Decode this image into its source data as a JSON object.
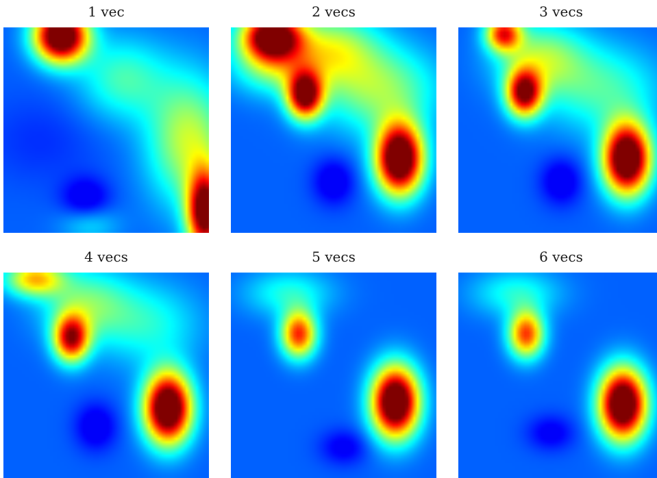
{
  "chart_data": [
    {
      "type": "heatmap",
      "title": "1 vec",
      "colormap": "jet",
      "value_range": [
        0,
        1
      ],
      "peaks": [
        {
          "x": 0.28,
          "y": 0.04,
          "value": 0.99,
          "sx": 0.09,
          "sy": 0.09
        },
        {
          "x": 0.98,
          "y": 0.9,
          "value": 0.85,
          "sx": 0.06,
          "sy": 0.14
        },
        {
          "x": 0.9,
          "y": 0.55,
          "value": 0.35,
          "sx": 0.14,
          "sy": 0.22
        },
        {
          "x": 0.58,
          "y": 0.25,
          "value": 0.22,
          "sx": 0.15,
          "sy": 0.14
        },
        {
          "x": 0.42,
          "y": 0.96,
          "value": 0.12,
          "sx": 0.1,
          "sy": 0.06
        }
      ],
      "troughs": [
        {
          "x": 0.4,
          "y": 0.83,
          "value": -0.15,
          "sx": 0.08,
          "sy": 0.07
        },
        {
          "x": 0.18,
          "y": 0.55,
          "value": -0.05,
          "sx": 0.2,
          "sy": 0.15
        }
      ]
    },
    {
      "type": "heatmap",
      "title": "2 vecs",
      "colormap": "jet",
      "value_range": [
        0,
        1
      ],
      "peaks": [
        {
          "x": 0.2,
          "y": 0.04,
          "value": 0.88,
          "sx": 0.1,
          "sy": 0.08
        },
        {
          "x": 0.36,
          "y": 0.33,
          "value": 0.8,
          "sx": 0.06,
          "sy": 0.08
        },
        {
          "x": 0.82,
          "y": 0.64,
          "value": 1.0,
          "sx": 0.08,
          "sy": 0.12
        },
        {
          "x": 0.22,
          "y": 0.18,
          "value": 0.3,
          "sx": 0.15,
          "sy": 0.1
        },
        {
          "x": 0.5,
          "y": 0.1,
          "value": 0.3,
          "sx": 0.15,
          "sy": 0.12
        },
        {
          "x": 0.72,
          "y": 0.3,
          "value": 0.3,
          "sx": 0.2,
          "sy": 0.15
        }
      ],
      "troughs": [
        {
          "x": 0.5,
          "y": 0.75,
          "value": -0.15,
          "sx": 0.07,
          "sy": 0.08
        }
      ]
    },
    {
      "type": "heatmap",
      "title": "3 vecs",
      "colormap": "jet",
      "value_range": [
        0,
        1
      ],
      "peaks": [
        {
          "x": 0.32,
          "y": 0.32,
          "value": 0.75,
          "sx": 0.06,
          "sy": 0.08
        },
        {
          "x": 0.82,
          "y": 0.64,
          "value": 1.0,
          "sx": 0.08,
          "sy": 0.12
        },
        {
          "x": 0.22,
          "y": 0.03,
          "value": 0.6,
          "sx": 0.06,
          "sy": 0.06
        },
        {
          "x": 0.4,
          "y": 0.15,
          "value": 0.3,
          "sx": 0.15,
          "sy": 0.12
        },
        {
          "x": 0.7,
          "y": 0.3,
          "value": 0.22,
          "sx": 0.2,
          "sy": 0.15
        }
      ],
      "troughs": [
        {
          "x": 0.5,
          "y": 0.75,
          "value": -0.15,
          "sx": 0.07,
          "sy": 0.08
        }
      ]
    },
    {
      "type": "heatmap",
      "title": "4 vecs",
      "colormap": "jet",
      "value_range": [
        0,
        1
      ],
      "peaks": [
        {
          "x": 0.33,
          "y": 0.32,
          "value": 0.7,
          "sx": 0.06,
          "sy": 0.08
        },
        {
          "x": 0.8,
          "y": 0.66,
          "value": 1.0,
          "sx": 0.08,
          "sy": 0.12
        },
        {
          "x": 0.15,
          "y": 0.03,
          "value": 0.45,
          "sx": 0.1,
          "sy": 0.06
        },
        {
          "x": 0.4,
          "y": 0.15,
          "value": 0.25,
          "sx": 0.15,
          "sy": 0.12
        },
        {
          "x": 0.7,
          "y": 0.25,
          "value": 0.18,
          "sx": 0.18,
          "sy": 0.14
        }
      ],
      "troughs": [
        {
          "x": 0.45,
          "y": 0.75,
          "value": -0.15,
          "sx": 0.07,
          "sy": 0.08
        }
      ]
    },
    {
      "type": "heatmap",
      "title": "5 vecs",
      "colormap": "jet",
      "value_range": [
        0,
        1
      ],
      "peaks": [
        {
          "x": 0.33,
          "y": 0.3,
          "value": 0.62,
          "sx": 0.06,
          "sy": 0.08
        },
        {
          "x": 0.8,
          "y": 0.63,
          "value": 1.0,
          "sx": 0.08,
          "sy": 0.12
        },
        {
          "x": 0.28,
          "y": 0.1,
          "value": 0.18,
          "sx": 0.15,
          "sy": 0.08
        }
      ],
      "troughs": [
        {
          "x": 0.55,
          "y": 0.85,
          "value": -0.12,
          "sx": 0.08,
          "sy": 0.06
        }
      ]
    },
    {
      "type": "heatmap",
      "title": "6 vecs",
      "colormap": "jet",
      "value_range": [
        0,
        1
      ],
      "peaks": [
        {
          "x": 0.33,
          "y": 0.3,
          "value": 0.6,
          "sx": 0.06,
          "sy": 0.08
        },
        {
          "x": 0.8,
          "y": 0.64,
          "value": 1.0,
          "sx": 0.08,
          "sy": 0.12
        },
        {
          "x": 0.28,
          "y": 0.1,
          "value": 0.18,
          "sx": 0.15,
          "sy": 0.08
        }
      ],
      "troughs": [
        {
          "x": 0.45,
          "y": 0.78,
          "value": -0.12,
          "sx": 0.08,
          "sy": 0.06
        }
      ]
    }
  ]
}
